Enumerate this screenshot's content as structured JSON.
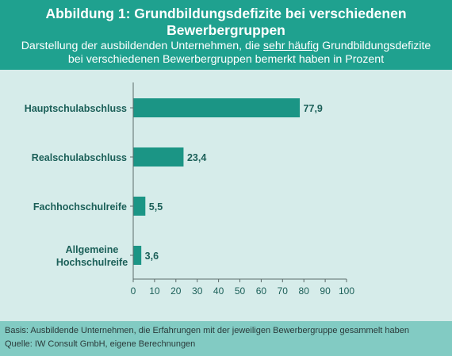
{
  "header": {
    "title_line1": "Abbildung 1: Grundbildungsdefizite bei verschiedenen",
    "title_line2": "Bewerbergruppen",
    "subtitle_before": "Darstellung der ausbildenden Unternehmen, die ",
    "subtitle_emph": "sehr häufig",
    "subtitle_after": " Grundbildungsdefizite",
    "subtitle_line2": "bei verschiedenen Bewerbergruppen bemerkt haben in Prozent"
  },
  "footer": {
    "basis": "Basis: Ausbildende Unternehmen, die Erfahrungen mit der jeweiligen Bewerbergruppe gesammelt haben",
    "source": "Quelle: IW Consult GmbH, eigene Berechnungen"
  },
  "colors": {
    "header_bg": "#1fa18f",
    "bar": "#1b9585",
    "panel_bg": "#d6ecea",
    "footer_bg": "#82cbc3"
  },
  "chart_data": {
    "type": "bar",
    "orientation": "horizontal",
    "categories": [
      [
        "Hauptschulabschluss"
      ],
      [
        "Realschulabschluss"
      ],
      [
        "Fachhochschulreife"
      ],
      [
        "Allgemeine",
        "Hochschulreife"
      ]
    ],
    "values": [
      77.9,
      23.4,
      5.5,
      3.6
    ],
    "value_labels": [
      "77,9",
      "23,4",
      "5,5",
      "3,6"
    ],
    "xlim": [
      0,
      100
    ],
    "x_ticks": [
      0,
      10,
      20,
      30,
      40,
      50,
      60,
      70,
      80,
      90,
      100
    ],
    "grid": false,
    "legend": "none"
  }
}
